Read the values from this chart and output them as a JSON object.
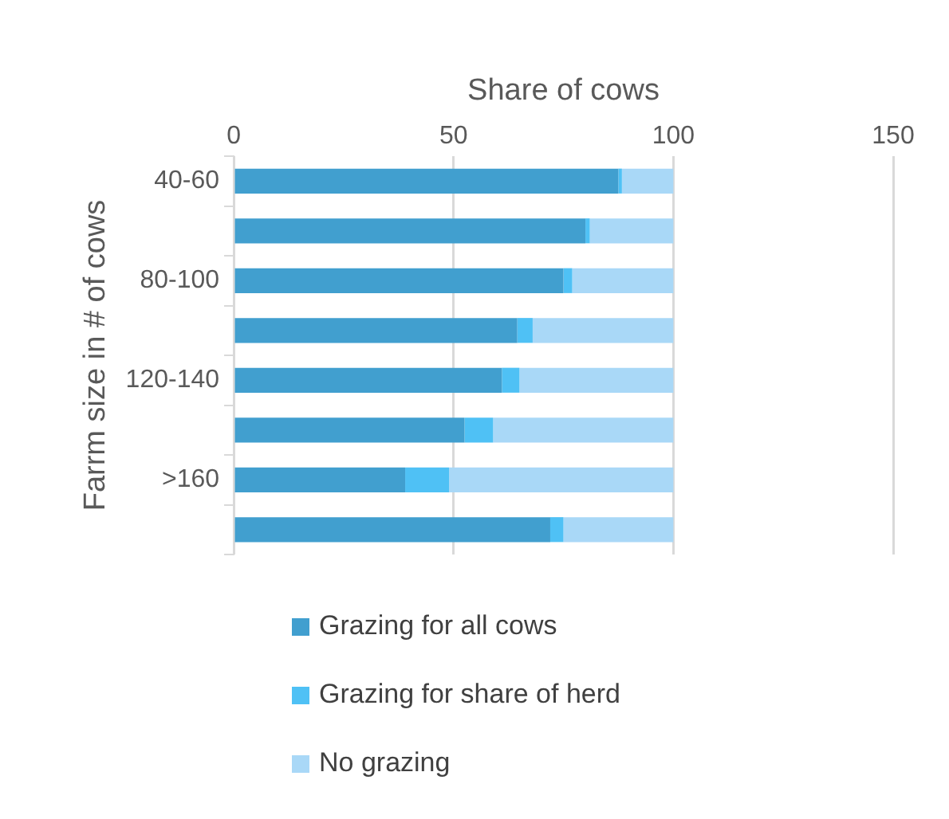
{
  "chart_data": {
    "type": "bar",
    "orientation": "horizontal",
    "stacked": true,
    "xlabel": "Share of cows",
    "ylabel": "Farrm size in # of cows",
    "categories": [
      "40-60",
      null,
      "80-100",
      null,
      "120-140",
      null,
      ">160",
      null
    ],
    "series": [
      {
        "name": "Grazing for all cows",
        "color": "#419fcf",
        "values": [
          87.5,
          80,
          75,
          64.5,
          61,
          52.5,
          39,
          72
        ]
      },
      {
        "name": "Grazing for share of herd",
        "color": "#4fc1f5",
        "values": [
          0.8,
          1,
          2,
          3.5,
          4,
          6.5,
          10,
          3
        ]
      },
      {
        "name": "No grazing",
        "color": "#a9d8f7",
        "values": [
          11.7,
          19,
          23,
          32,
          35,
          41,
          51,
          25
        ]
      }
    ],
    "xlim": [
      0,
      150
    ],
    "xticks": [
      0,
      50,
      100,
      150
    ],
    "grid": "x",
    "legend": "bottom"
  }
}
